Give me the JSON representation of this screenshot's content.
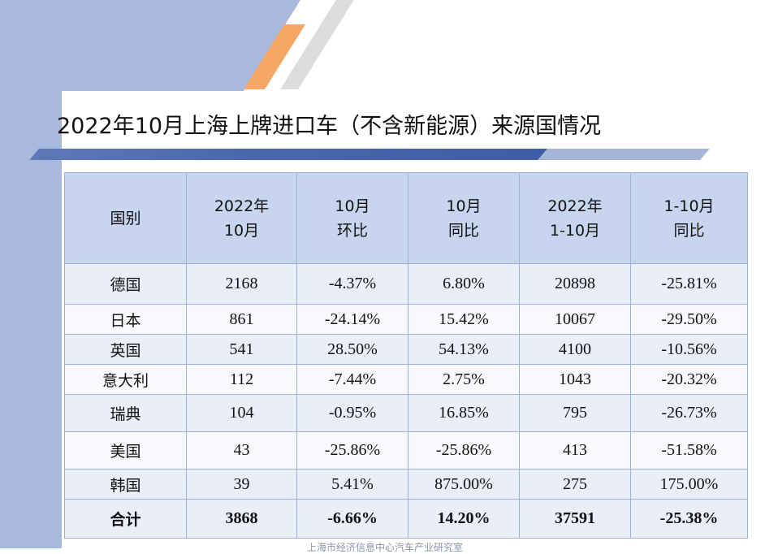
{
  "title": "2022年10月上海上牌进口车（不含新能源）来源国情况",
  "headers": [
    {
      "line1": "国别",
      "line2": ""
    },
    {
      "line1": "2022年",
      "line2": "10月"
    },
    {
      "line1": "10月",
      "line2": "环比"
    },
    {
      "line1": "10月",
      "line2": "同比"
    },
    {
      "line1": "2022年",
      "line2": "1-10月"
    },
    {
      "line1": "1-10月",
      "line2": "同比"
    }
  ],
  "rows": [
    {
      "country": "德国",
      "oct": "2168",
      "mom": "-4.37%",
      "yoy": "6.80%",
      "ytd": "20898",
      "ytd_yoy": "-25.81%"
    },
    {
      "country": "日本",
      "oct": "861",
      "mom": "-24.14%",
      "yoy": "15.42%",
      "ytd": "10067",
      "ytd_yoy": "-29.50%"
    },
    {
      "country": "英国",
      "oct": "541",
      "mom": "28.50%",
      "yoy": "54.13%",
      "ytd": "4100",
      "ytd_yoy": "-10.56%"
    },
    {
      "country": "意大利",
      "oct": "112",
      "mom": "-7.44%",
      "yoy": "2.75%",
      "ytd": "1043",
      "ytd_yoy": "-20.32%"
    },
    {
      "country": "瑞典",
      "oct": "104",
      "mom": "-0.95%",
      "yoy": "16.85%",
      "ytd": "795",
      "ytd_yoy": "-26.73%"
    },
    {
      "country": "美国",
      "oct": "43",
      "mom": "-25.86%",
      "yoy": "-25.86%",
      "ytd": "413",
      "ytd_yoy": "-51.58%"
    },
    {
      "country": "韩国",
      "oct": "39",
      "mom": "5.41%",
      "yoy": "875.00%",
      "ytd": "275",
      "ytd_yoy": "175.00%"
    }
  ],
  "total": {
    "country": "合计",
    "oct": "3868",
    "mom": "-6.66%",
    "yoy": "14.20%",
    "ytd": "37591",
    "ytd_yoy": "-25.38%"
  },
  "footer": "上海市经济信息中心汽车产业研究室",
  "colors": {
    "header_bg": "#c7d5ee",
    "accent": "#4a68ad",
    "stripe": "#f6a766",
    "side": "#a9b9dd"
  }
}
